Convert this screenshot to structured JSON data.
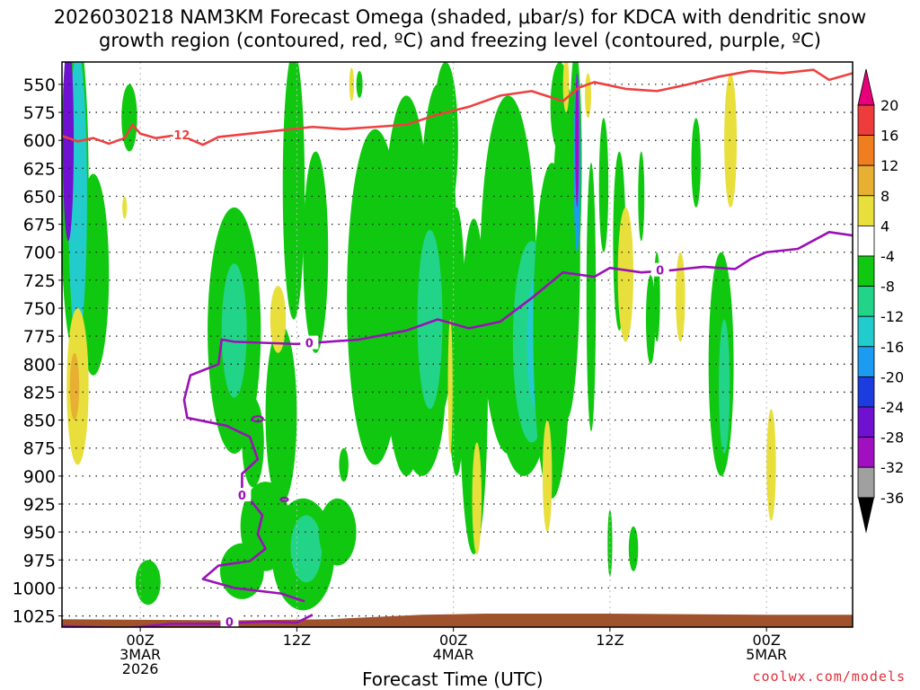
{
  "chart_data": {
    "type": "heatmap",
    "title_line1": "2026030218 NAM3KM Forecast Omega (shaded, μbar/s) for KDCA with dendritic snow",
    "title_line2": "growth region (contoured, red, ºC) and freezing level (contoured, purple, ºC)",
    "xlabel": "Forecast Time (UTC)",
    "y_ticks": [
      550,
      575,
      600,
      625,
      650,
      675,
      700,
      725,
      750,
      775,
      800,
      825,
      850,
      875,
      900,
      925,
      950,
      975,
      1000,
      1025
    ],
    "ylim": [
      1035,
      530
    ],
    "xlim_hours": [
      -5,
      45.5
    ],
    "x_ticks": [
      {
        "hour": 0,
        "label1": "00Z",
        "label2": "3MAR",
        "label3": "2026"
      },
      {
        "hour": 10,
        "label1": "12Z",
        "label2": "",
        "label3": ""
      },
      {
        "hour": 20,
        "label1": "00Z",
        "label2": "4MAR",
        "label3": ""
      },
      {
        "hour": 30,
        "label1": "12Z",
        "label2": "",
        "label3": ""
      },
      {
        "hour": 40,
        "label1": "00Z",
        "label2": "5MAR",
        "label3": ""
      }
    ],
    "colorbar": {
      "labels": [
        "20",
        "16",
        "12",
        "8",
        "4",
        "-4",
        "-8",
        "-12",
        "-16",
        "-20",
        "-24",
        "-28",
        "-32",
        "-36"
      ],
      "colors": [
        "#e8007a",
        "#ee3c3c",
        "#f07d1e",
        "#e8b032",
        "#e8df3c",
        "#ffffff",
        "#10c810",
        "#22d488",
        "#22cccc",
        "#1c9cf0",
        "#1c3ce0",
        "#7010d0",
        "#a010c0",
        "#a0a0a0",
        "#000000"
      ]
    },
    "contour_labels": {
      "dgz": "-12",
      "freezing": "0"
    },
    "dgz_line": {
      "color": "#ee4040",
      "points": [
        [
          -5,
          596
        ],
        [
          -4,
          601
        ],
        [
          -3,
          598
        ],
        [
          -2,
          603
        ],
        [
          -1,
          598
        ],
        [
          -0.5,
          586
        ],
        [
          0,
          594
        ],
        [
          1,
          598
        ],
        [
          2,
          596
        ],
        [
          3,
          598
        ],
        [
          4,
          604
        ],
        [
          5,
          597
        ],
        [
          7,
          594
        ],
        [
          9,
          591
        ],
        [
          11,
          588
        ],
        [
          13,
          590
        ],
        [
          15,
          588
        ],
        [
          17,
          586
        ],
        [
          19,
          577
        ],
        [
          21,
          570
        ],
        [
          23,
          560
        ],
        [
          25,
          556
        ],
        [
          27,
          565
        ],
        [
          28,
          553
        ],
        [
          29,
          548
        ],
        [
          31,
          554
        ],
        [
          33,
          556
        ],
        [
          35,
          550
        ],
        [
          37,
          543
        ],
        [
          39,
          538
        ],
        [
          41,
          540
        ],
        [
          43,
          537
        ],
        [
          44,
          546
        ],
        [
          45.5,
          540
        ]
      ]
    },
    "freezing_line": {
      "color": "#9a10b8",
      "points": [
        [
          -5,
          1034
        ],
        [
          -1,
          1036
        ],
        [
          2,
          1032
        ],
        [
          5,
          1032
        ],
        [
          8,
          1030
        ],
        [
          10,
          1031
        ],
        [
          11,
          1024
        ]
      ]
    },
    "freezing_line_upper": {
      "color": "#9a10b8",
      "points": [
        [
          10.5,
          1012
        ],
        [
          9,
          1005
        ],
        [
          6,
          1000
        ],
        [
          4,
          992
        ],
        [
          5,
          980
        ],
        [
          7,
          976
        ],
        [
          8,
          965
        ],
        [
          7.5,
          952
        ],
        [
          7.8,
          935
        ],
        [
          6.5,
          912
        ],
        [
          6.5,
          898
        ],
        [
          7.5,
          885
        ],
        [
          7,
          865
        ],
        [
          5.5,
          855
        ],
        [
          3,
          848
        ],
        [
          2.8,
          832
        ],
        [
          3.2,
          810
        ],
        [
          5,
          800
        ],
        [
          5.2,
          778
        ],
        [
          6,
          780
        ],
        [
          10,
          782
        ],
        [
          14,
          778
        ],
        [
          17,
          770
        ],
        [
          19,
          760
        ],
        [
          21,
          768
        ],
        [
          23,
          762
        ],
        [
          25,
          741
        ],
        [
          27,
          718
        ],
        [
          29,
          722
        ],
        [
          30,
          714
        ],
        [
          32,
          718
        ],
        [
          34,
          716
        ],
        [
          36,
          713
        ],
        [
          38,
          715
        ],
        [
          39,
          706
        ],
        [
          40,
          700
        ],
        [
          42,
          697
        ],
        [
          44,
          682
        ],
        [
          45.5,
          685
        ]
      ]
    },
    "ground_color": "#a0522d"
  },
  "credit": "coolwx.com/models"
}
